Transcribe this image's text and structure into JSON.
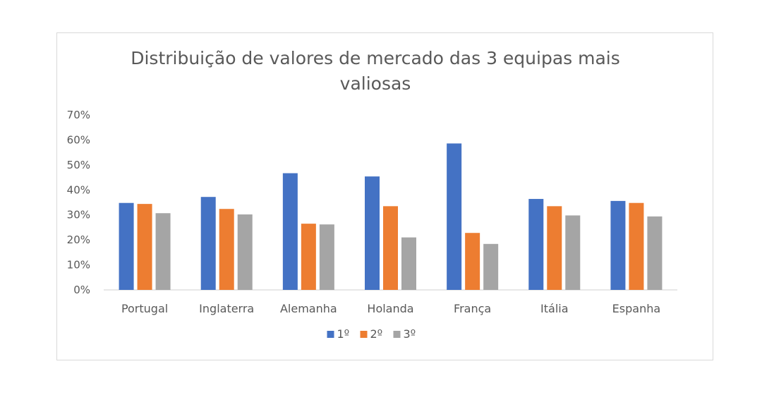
{
  "chart_data": {
    "type": "bar",
    "title_lines": [
      "Distribuição de valores de mercado das 3 equipas mais",
      "valiosas"
    ],
    "xlabel": "",
    "ylabel": "",
    "categories": [
      "Portugal",
      "Inglaterra",
      "Alemanha",
      "Holanda",
      "França",
      "Itália",
      "Espanha"
    ],
    "series": [
      {
        "name": "1º",
        "color": "#4472C4",
        "values": [
          0.348,
          0.372,
          0.467,
          0.454,
          0.586,
          0.364,
          0.356
        ]
      },
      {
        "name": "2º",
        "color": "#ED7D31",
        "values": [
          0.344,
          0.324,
          0.265,
          0.335,
          0.228,
          0.335,
          0.348
        ]
      },
      {
        "name": "3º",
        "color": "#A5A5A5",
        "values": [
          0.307,
          0.302,
          0.262,
          0.21,
          0.184,
          0.298,
          0.294
        ]
      }
    ],
    "ylim": [
      0,
      0.7
    ],
    "y_ticks": [
      0,
      0.1,
      0.2,
      0.3,
      0.4,
      0.5,
      0.6,
      0.7
    ],
    "y_tick_labels": [
      "0%",
      "10%",
      "20%",
      "30%",
      "40%",
      "50%",
      "60%",
      "70%"
    ],
    "grid": false,
    "legend_position": "bottom"
  }
}
